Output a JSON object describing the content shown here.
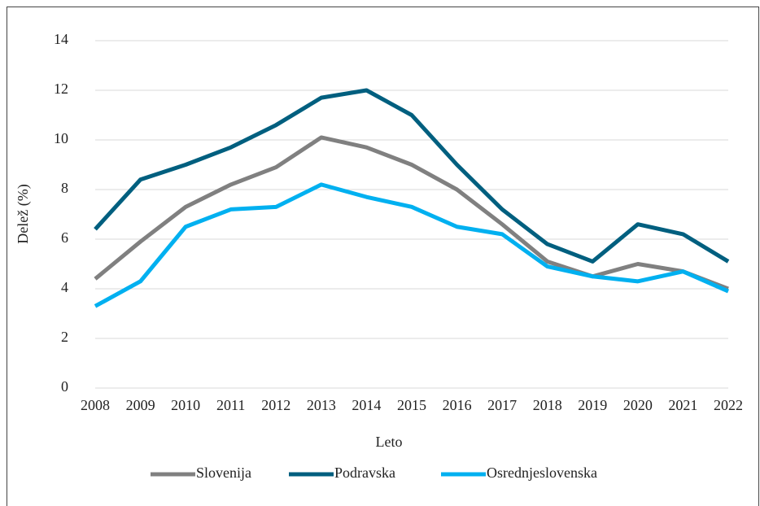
{
  "chart_data": {
    "type": "line",
    "x_label": "Leto",
    "y_label": "Delež (%)",
    "categories": [
      "2008",
      "2009",
      "2010",
      "2011",
      "2012",
      "2013",
      "2014",
      "2015",
      "2016",
      "2017",
      "2018",
      "2019",
      "2020",
      "2021",
      "2022"
    ],
    "series": [
      {
        "name": "Slovenija",
        "color": "#808080",
        "values": [
          4.4,
          5.9,
          7.3,
          8.2,
          8.9,
          10.1,
          9.7,
          9.0,
          8.0,
          6.6,
          5.1,
          4.5,
          5.0,
          4.7,
          4.0
        ]
      },
      {
        "name": "Podravska",
        "color": "#005f7f",
        "values": [
          6.4,
          8.4,
          9.0,
          9.7,
          10.6,
          11.7,
          12.0,
          11.0,
          9.0,
          7.2,
          5.8,
          5.1,
          6.6,
          6.2,
          5.1
        ]
      },
      {
        "name": "Osrednjeslovenska",
        "color": "#00b0f0",
        "values": [
          3.3,
          4.3,
          6.5,
          7.2,
          7.3,
          8.2,
          7.7,
          7.3,
          6.5,
          6.2,
          4.9,
          4.5,
          4.3,
          4.7,
          3.9
        ]
      }
    ],
    "ylim": [
      0,
      14
    ],
    "yticks": [
      0,
      2,
      4,
      6,
      8,
      10,
      12,
      14
    ],
    "grid": true,
    "legend": "bottom"
  }
}
